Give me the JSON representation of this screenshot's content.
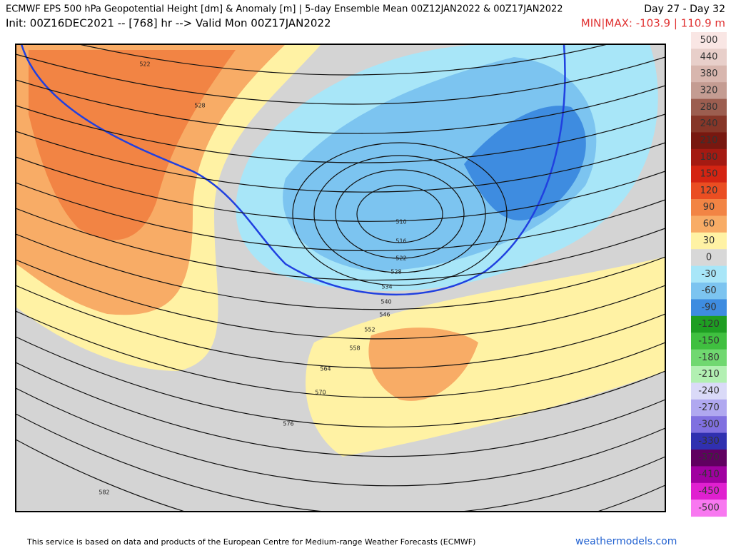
{
  "header": {
    "title": "ECMWF EPS 500 hPa Geopotential Height [dm] & Anomaly [m] | 5-day Ensemble Mean 00Z12JAN2022 & 00Z17JAN2022",
    "period": "Day 27 - Day 32",
    "init": "Init: 00Z16DEC2021 -- [768] hr --> Valid Mon 00Z17JAN2022",
    "minmax": "MIN|MAX: -103.9 | 110.9 m"
  },
  "contour_labels": [
    522,
    528,
    510,
    516,
    522,
    528,
    534,
    540,
    546,
    552,
    558,
    564,
    570,
    576,
    582
  ],
  "colorbar": [
    {
      "value": 500,
      "color": "#f9e6e4"
    },
    {
      "value": 440,
      "color": "#e8cfca"
    },
    {
      "value": 380,
      "color": "#d8b6ae"
    },
    {
      "value": 320,
      "color": "#c49c92"
    },
    {
      "value": 280,
      "color": "#9c5e50"
    },
    {
      "value": 240,
      "color": "#863628"
    },
    {
      "value": 210,
      "color": "#781810"
    },
    {
      "value": 180,
      "color": "#a41a12"
    },
    {
      "value": 150,
      "color": "#d42412"
    },
    {
      "value": 120,
      "color": "#ea4e22"
    },
    {
      "value": 90,
      "color": "#f28444"
    },
    {
      "value": 60,
      "color": "#f8ac66"
    },
    {
      "value": 30,
      "color": "#fff2a4"
    },
    {
      "value": 0,
      "color": "#d8d8d8"
    },
    {
      "value": -30,
      "color": "#a8e6f8"
    },
    {
      "value": -60,
      "color": "#7cc4f0"
    },
    {
      "value": -90,
      "color": "#3e8ce0"
    },
    {
      "value": -120,
      "color": "#1e9e22"
    },
    {
      "value": -150,
      "color": "#40c040"
    },
    {
      "value": -180,
      "color": "#70d870"
    },
    {
      "value": -210,
      "color": "#b2f0b2"
    },
    {
      "value": -240,
      "color": "#dadaf8"
    },
    {
      "value": -270,
      "color": "#b0a8f0"
    },
    {
      "value": -300,
      "color": "#8070e0"
    },
    {
      "value": -330,
      "color": "#3030b0"
    },
    {
      "value": -370,
      "color": "#600060"
    },
    {
      "value": -410,
      "color": "#a000a0"
    },
    {
      "value": -450,
      "color": "#e020d0"
    },
    {
      "value": -500,
      "color": "#f878f0"
    }
  ],
  "footer": {
    "credit": "This service is based on data and products of the European Centre for Medium-range Weather Forecasts (ECMWF)",
    "site": "weathermodels.com"
  }
}
